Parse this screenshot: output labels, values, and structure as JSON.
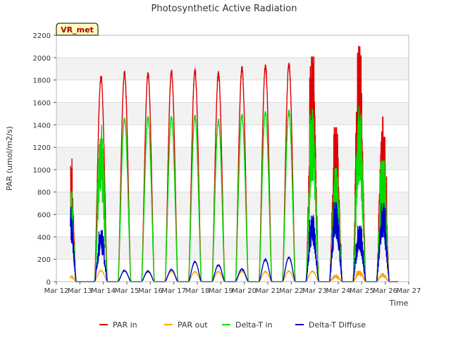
{
  "chart_data": {
    "type": "line",
    "title": "Photosynthetic Active Radiation",
    "xlabel": "Time",
    "ylabel": "PAR (umol/m2/s)",
    "site_label": "VR_met",
    "ylim": [
      0,
      2200
    ],
    "yticks": [
      0,
      200,
      400,
      600,
      800,
      1000,
      1200,
      1400,
      1600,
      1800,
      2000,
      2200
    ],
    "xlim": [
      12,
      27
    ],
    "xticks": [
      {
        "value": 12,
        "label": "Mar 12"
      },
      {
        "value": 13,
        "label": "Mar 13"
      },
      {
        "value": 14,
        "label": "Mar 14"
      },
      {
        "value": 15,
        "label": "Mar 15"
      },
      {
        "value": 16,
        "label": "Mar 16"
      },
      {
        "value": 17,
        "label": "Mar 17"
      },
      {
        "value": 18,
        "label": "Mar 18"
      },
      {
        "value": 19,
        "label": "Mar 19"
      },
      {
        "value": 20,
        "label": "Mar 20"
      },
      {
        "value": 21,
        "label": "Mar 21"
      },
      {
        "value": 22,
        "label": "Mar 22"
      },
      {
        "value": 23,
        "label": "Mar 23"
      },
      {
        "value": 24,
        "label": "Mar 24"
      },
      {
        "value": 25,
        "label": "Mar 25"
      },
      {
        "value": 26,
        "label": "Mar 26"
      },
      {
        "value": 27,
        "label": "Mar 27"
      }
    ],
    "days": [
      12.6,
      13.9,
      14.9,
      15.9,
      16.9,
      17.9,
      18.9,
      19.9,
      20.9,
      21.9,
      22.9,
      23.9,
      24.9,
      25.9
    ],
    "series": [
      {
        "name": "PAR in",
        "color": "#dd0000",
        "daily_peaks": [
          1100,
          1850,
          1890,
          1880,
          1895,
          1910,
          1880,
          1930,
          1950,
          1965,
          2010,
          1380,
          2100,
          1470
        ],
        "noisy": [
          true,
          false,
          false,
          false,
          false,
          false,
          false,
          false,
          false,
          false,
          true,
          true,
          true,
          true
        ]
      },
      {
        "name": "PAR out",
        "color": "#ffa500",
        "daily_peaks": [
          60,
          100,
          100,
          90,
          95,
          90,
          90,
          95,
          90,
          95,
          95,
          60,
          100,
          75
        ],
        "noisy": [
          true,
          false,
          false,
          false,
          false,
          false,
          false,
          false,
          false,
          false,
          false,
          true,
          true,
          true
        ]
      },
      {
        "name": "Delta-T in",
        "color": "#00dd00",
        "daily_peaks": [
          820,
          1400,
          1475,
          1480,
          1485,
          1490,
          1460,
          1505,
          1530,
          1540,
          1545,
          1010,
          1600,
          1080
        ],
        "noisy": [
          true,
          true,
          false,
          false,
          false,
          false,
          false,
          false,
          false,
          false,
          true,
          true,
          true,
          true
        ]
      },
      {
        "name": "Delta-T Diffuse",
        "color": "#0000cc",
        "daily_peaks": [
          670,
          460,
          100,
          95,
          110,
          180,
          150,
          115,
          200,
          220,
          590,
          710,
          500,
          700
        ],
        "noisy": [
          true,
          true,
          false,
          false,
          false,
          false,
          false,
          false,
          false,
          false,
          true,
          true,
          true,
          true
        ]
      }
    ],
    "legend_position": "bottom-center",
    "grid": true
  }
}
